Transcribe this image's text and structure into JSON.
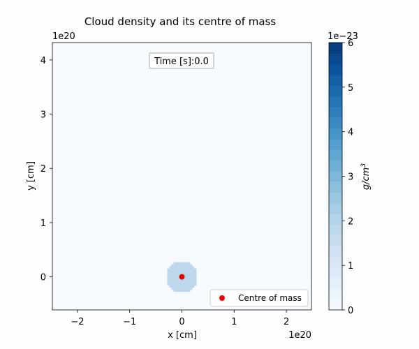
{
  "chart_data": {
    "type": "heatmap",
    "title": "Cloud density and its centre of mass",
    "xlabel": "x [cm]",
    "ylabel": "y [cm]",
    "x_offset_label": "1e20",
    "y_offset_label": "1e20",
    "xlim": [
      -2.48,
      2.48
    ],
    "ylim": [
      -0.61,
      4.32
    ],
    "x_ticks": [
      {
        "value": -2,
        "label": "−2"
      },
      {
        "value": -1,
        "label": "−1"
      },
      {
        "value": 0,
        "label": "0"
      },
      {
        "value": 1,
        "label": "1"
      },
      {
        "value": 2,
        "label": "2"
      }
    ],
    "y_ticks": [
      {
        "value": 0,
        "label": "0"
      },
      {
        "value": 1,
        "label": "1"
      },
      {
        "value": 2,
        "label": "2"
      },
      {
        "value": 3,
        "label": "3"
      },
      {
        "value": 4,
        "label": "4"
      }
    ],
    "annotation": "Time [s]:0.0",
    "background_color": "#f7fbff",
    "cloud": {
      "center": [
        0,
        0
      ],
      "radius": 0.3,
      "density": 2.1,
      "color": "#bdd7ec"
    },
    "centre_of_mass": {
      "x": 0,
      "y": 0,
      "color": "#ee0000"
    },
    "legend": {
      "label": "Centre of mass",
      "position": "lower-right"
    },
    "colorbar": {
      "label": "g/cm",
      "label_exponent": "3",
      "offset_label": "1e−23",
      "range": [
        0,
        6
      ],
      "levels": 25,
      "ticks": [
        {
          "value": 0,
          "label": "0"
        },
        {
          "value": 1,
          "label": "1"
        },
        {
          "value": 2,
          "label": "2"
        },
        {
          "value": 3,
          "label": "3"
        },
        {
          "value": 4,
          "label": "4"
        },
        {
          "value": 5,
          "label": "5"
        },
        {
          "value": 6,
          "label": "6"
        }
      ],
      "colors": [
        "#f7fbff",
        "#e5eff9",
        "#d3e3f4",
        "#bed8ec",
        "#a1cbe2",
        "#7db8da",
        "#5aa2cf",
        "#3b8bc2",
        "#1f6fb1",
        "#0b539e",
        "#083a7a"
      ]
    }
  }
}
